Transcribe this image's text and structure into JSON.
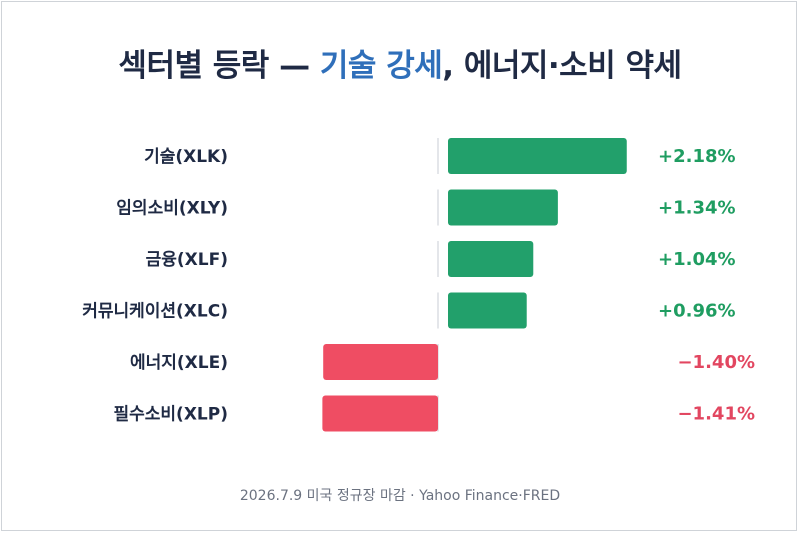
{
  "title": {
    "part1": "섹터별 등락 — ",
    "accent": "기술 강세",
    "part2": ", 에너지·소비 약세"
  },
  "footer": "2026.7.9 미국 정규장 마감 · Yahoo Finance·FRED",
  "colors": {
    "positive": "#22a06b",
    "negative": "#ef4d63",
    "positive_text": "#1f9d61",
    "negative_text": "#e24660",
    "title": "#1f2a44",
    "title_accent": "#2f6fba",
    "axis": "#d1d5db"
  },
  "chart_data": {
    "type": "bar",
    "orientation": "horizontal",
    "categories": [
      "기술(XLK)",
      "임의소비(XLY)",
      "금융(XLF)",
      "커뮤니케이션(XLC)",
      "에너지(XLE)",
      "필수소비(XLP)"
    ],
    "values": [
      2.18,
      1.34,
      1.04,
      0.96,
      -1.4,
      -1.41
    ],
    "value_labels": [
      "+2.18%",
      "+1.34%",
      "+1.04%",
      "+0.96%",
      "−1.40%",
      "−1.41%"
    ],
    "title": "섹터별 등락 — 기술 강세, 에너지·소비 약세",
    "xlabel": "",
    "ylabel": "",
    "xlim": [
      -1.41,
      2.18
    ],
    "grid": false,
    "legend": "none"
  }
}
